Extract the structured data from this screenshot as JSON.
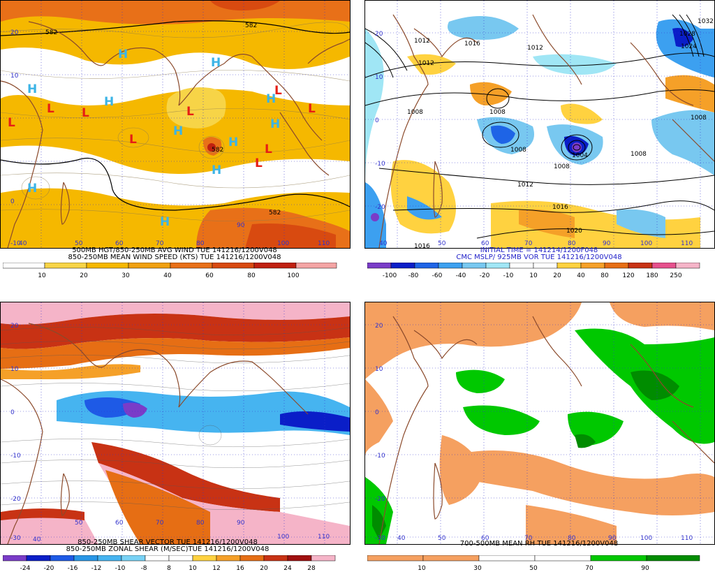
{
  "colors": {
    "coast": "#8b4a2b",
    "grid": "#3333cc",
    "wind": [
      "#ffffff",
      "#f7d447",
      "#f5b800",
      "#f0a010",
      "#e87018",
      "#d84a10",
      "#c02010",
      "#f4a4a4"
    ],
    "vor": [
      "#7a3cc8",
      "#0a1ec8",
      "#1e64e6",
      "#3ca0f0",
      "#78c8f0",
      "#a0e6f5",
      "#ffffff",
      "#ffffff",
      "#ffd240",
      "#f5a028",
      "#e66e14",
      "#c83214",
      "#e6508c",
      "#f5b4c8"
    ],
    "shear": [
      "#7a3cc8",
      "#0a1ec8",
      "#1e5ae6",
      "#2896e6",
      "#46b4f0",
      "#78d2f5",
      "#ffffff",
      "#ffffff",
      "#ffd240",
      "#f5a028",
      "#e66e14",
      "#c83214",
      "#a01010",
      "#f5b4c8"
    ],
    "rh": [
      "#f5a060",
      "#f5a060",
      "#ffffff",
      "#ffffff",
      "#00c800",
      "#008c00"
    ],
    "H": "#3cb4e6",
    "L": "#e61e14"
  },
  "panels": {
    "wind": {
      "title1": "500MB HGT/850-250MB AVG WIND TUE 141216/1200V048",
      "title2": "850-250MB MEAN WIND SPEED (KTS) TUE 141216/1200V048",
      "lat_labels": [
        "20",
        "10",
        "0",
        "-10"
      ],
      "lon_labels": [
        "40",
        "50",
        "60",
        "70",
        "80",
        "90",
        "100",
        "110"
      ],
      "contour_labels": [
        "582",
        "582",
        "582",
        "582"
      ],
      "highs": [
        "H",
        "H",
        "H",
        "H",
        "H",
        "H",
        "H",
        "H",
        "H",
        "H"
      ],
      "lows": [
        "L",
        "L",
        "L",
        "L",
        "L",
        "L",
        "L",
        "L",
        "L"
      ],
      "colorbar": [
        "10",
        "20",
        "30",
        "40",
        "60",
        "80",
        "100"
      ]
    },
    "vort": {
      "title1": "INITIAL TIME = 141214/1200F048",
      "title2": "CMC MSLP/ 925MB VOR TUE 141216/1200V048",
      "lat_labels": [
        "20",
        "10",
        "0",
        "-10",
        "-20"
      ],
      "lon_labels": [
        "40",
        "50",
        "60",
        "70",
        "80",
        "90",
        "100",
        "110"
      ],
      "isobar_labels": [
        "1012",
        "1016",
        "1012",
        "1012",
        "1008",
        "1008",
        "1008",
        "1008",
        "1004",
        "1008",
        "1012",
        "1016",
        "1020",
        "1016",
        "1032",
        "1028",
        "1024",
        "1008"
      ],
      "colorbar": [
        "-100",
        "-80",
        "-60",
        "-40",
        "-20",
        "-10",
        "10",
        "20",
        "40",
        "80",
        "120",
        "180",
        "250"
      ]
    },
    "shear": {
      "title1": "850-250MB SHEAR VECTOR TUE 141216/1200V048",
      "title2": "850-250MB ZONAL SHEAR (M/SEC)TUE 141216/1200V048",
      "lat_labels": [
        "20",
        "10",
        "0",
        "-10",
        "-20",
        "-30"
      ],
      "lon_labels": [
        "40",
        "50",
        "60",
        "70",
        "80",
        "90",
        "100",
        "110"
      ],
      "colorbar": [
        "-24",
        "-20",
        "-16",
        "-12",
        "-10",
        "-8",
        "8",
        "10",
        "12",
        "16",
        "20",
        "24",
        "28"
      ]
    },
    "rh": {
      "title1": "700-500MB MEAN RH TUE 141216/1200V048",
      "lat_labels": [
        "20",
        "10",
        "0",
        "-10",
        "-20",
        "-30"
      ],
      "lon_labels": [
        "40",
        "50",
        "60",
        "70",
        "80",
        "90",
        "100",
        "110"
      ],
      "colorbar": [
        "10",
        "30",
        "50",
        "70",
        "90"
      ]
    }
  }
}
